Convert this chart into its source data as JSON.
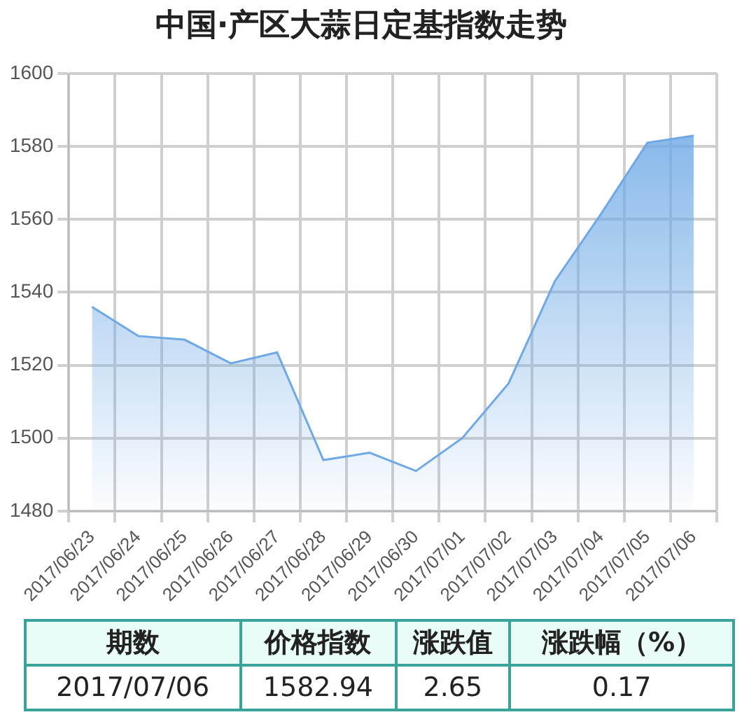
{
  "chart_data": {
    "type": "area",
    "title": "中国·产区大蒜日定基指数走势",
    "categories": [
      "2017/06/23",
      "2017/06/24",
      "2017/06/25",
      "2017/06/26",
      "2017/06/27",
      "2017/06/28",
      "2017/06/29",
      "2017/06/30",
      "2017/07/01",
      "2017/07/02",
      "2017/07/03",
      "2017/07/04",
      "2017/07/05",
      "2017/07/06"
    ],
    "series": [
      {
        "color": "#6ea9e6",
        "values": [
          1536,
          1528,
          1527,
          1520.5,
          1523.5,
          1494,
          1496,
          1491,
          1500,
          1515,
          1543,
          1561.5,
          1581,
          1582.94
        ]
      }
    ],
    "ylim": [
      1480,
      1600
    ],
    "yticks": [
      1480,
      1500,
      1520,
      1540,
      1560,
      1580,
      1600
    ],
    "grid": true,
    "legend": false,
    "annotations": [
      "期数",
      "价格指数",
      "涨跌值",
      "涨跌幅（%）",
      "2017/07/06",
      "1582.94",
      "2.65",
      "0.17"
    ]
  }
}
